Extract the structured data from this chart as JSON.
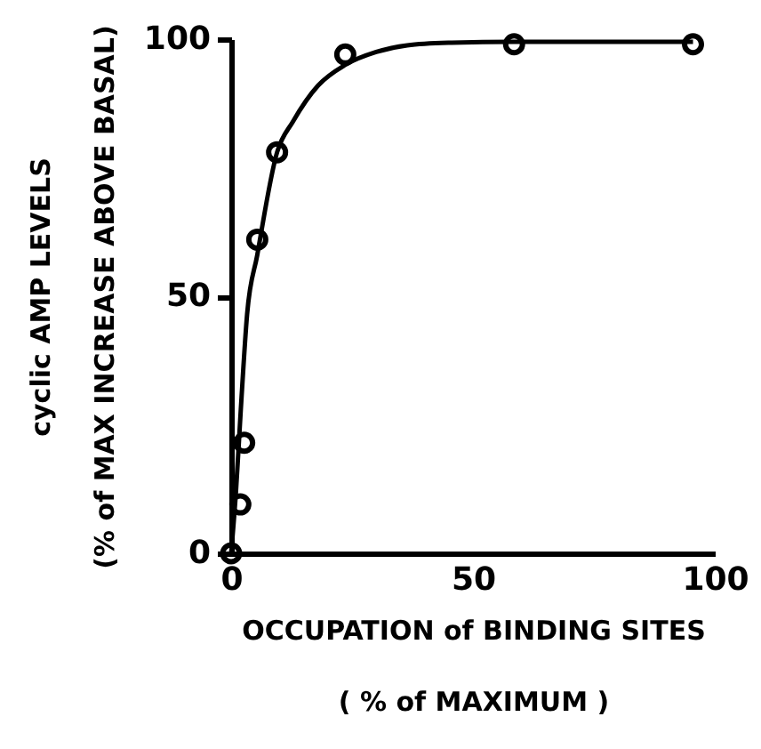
{
  "chart_data": {
    "type": "scatter",
    "xlabel": "OCCUPATION of BINDING SITES\n( % of MAXIMUM )",
    "ylabel": "cyclic AMP LEVELS\n(% of MAX  INCREASE ABOVE BASAL)",
    "x": [
      0,
      1.9,
      2.7,
      5.4,
      9.5,
      23.6,
      58.5,
      95.5
    ],
    "values": [
      0,
      9.5,
      21.5,
      61,
      78,
      97,
      99,
      99
    ],
    "color": "#000000",
    "series": [
      {
        "type": "line",
        "color": "#000000",
        "marker": "none",
        "x": [
          0,
          1,
          2,
          3.3,
          5.4,
          9.5,
          12.8,
          18,
          23.6,
          30,
          36.4,
          45,
          58.5,
          75,
          95.5
        ],
        "values": [
          0,
          12,
          28,
          46.5,
          58,
          78,
          84,
          91,
          95,
          97.5,
          98.8,
          99.3,
          99.5,
          99.5,
          99.5
        ]
      }
    ],
    "xlim": [
      0,
      100
    ],
    "ylim": [
      0,
      100
    ],
    "xticks": [
      0,
      50,
      100
    ],
    "yticks": [
      0,
      50,
      100
    ],
    "grid": false,
    "marker": "circle",
    "line_style": "solid"
  }
}
